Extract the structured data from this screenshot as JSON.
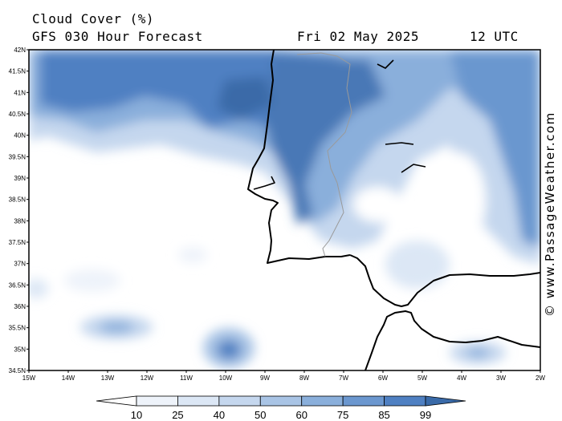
{
  "header": {
    "title_line1": "Cloud Cover (%)",
    "title_line2": "GFS 030 Hour Forecast",
    "date": "Fri 02 May 2025",
    "time": "12 UTC"
  },
  "credit": "© www.PassageWeather.com",
  "map": {
    "lat_labels": [
      "42N",
      "41.5N",
      "41N",
      "40.5N",
      "40N",
      "39.5N",
      "39N",
      "38.5N",
      "38N",
      "37.5N",
      "37N",
      "36.5N",
      "36N",
      "35.5N",
      "35N",
      "34.5N"
    ],
    "lon_labels": [
      "15W",
      "14W",
      "13W",
      "12W",
      "11W",
      "10W",
      "9W",
      "8W",
      "7W",
      "6W",
      "5W",
      "4W",
      "3W",
      "2W"
    ],
    "lat_range": [
      34.5,
      42
    ],
    "lon_range": [
      -15,
      -2
    ]
  },
  "colorbar": {
    "labels": [
      "10",
      "25",
      "40",
      "50",
      "60",
      "75",
      "85",
      "99"
    ],
    "colors": [
      "#ffffff",
      "#eef3fa",
      "#dce7f5",
      "#c5d7ee",
      "#a9c4e5",
      "#8aafdb",
      "#6b97cf",
      "#4f80c2",
      "#3a6aa8"
    ]
  }
}
